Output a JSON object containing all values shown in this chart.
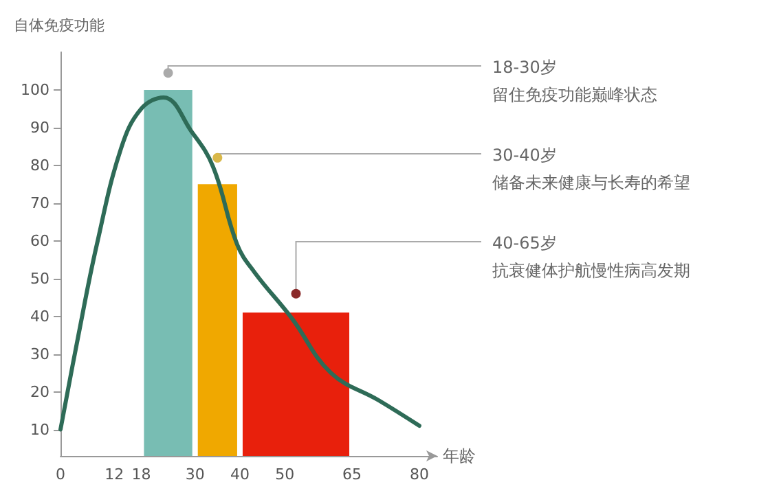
{
  "chart_data": {
    "type": "histogram",
    "xlabel": "年龄",
    "ylabel": "自体免疫功能",
    "series": [
      {
        "bins": [
          18,
          30,
          40,
          65
        ],
        "values": [
          100,
          75,
          41
        ],
        "colors": [
          "#78bdb3",
          "#f0a800",
          "#e8200c"
        ]
      },
      {
        "type": "line",
        "x": [
          0,
          4,
          8.1,
          13.5,
          18,
          23,
          29.2,
          34,
          39.4,
          43.3,
          51.5,
          60.3,
          71,
          80
        ],
        "values": [
          10,
          35,
          59,
          84.5,
          95,
          98,
          89,
          79.7,
          59,
          51.6,
          39.6,
          25,
          17.7,
          11
        ],
        "color": "#2e6b57"
      }
    ],
    "annotations": [
      {
        "text": "18-30岁",
        "x": 24,
        "y": 104.5
      },
      "留住免疫功能巅峰状态",
      {
        "text": "30-40岁",
        "x": 35,
        "y": 82
      },
      "储备未来健康与长寿的希望",
      {
        "text": "40-65岁",
        "x": 52.5,
        "y": 46
      },
      "抗衰健体护航慢性病高发期"
    ],
    "xlim": [
      0,
      84
    ],
    "ylim": [
      3,
      110
    ],
    "xticks": [
      0,
      12,
      18,
      30,
      40,
      50,
      65,
      80
    ],
    "yticks": [
      10,
      20,
      30,
      40,
      50,
      60,
      70,
      80,
      90,
      100
    ],
    "grid": false,
    "marker": "none",
    "line_style": "solid"
  }
}
